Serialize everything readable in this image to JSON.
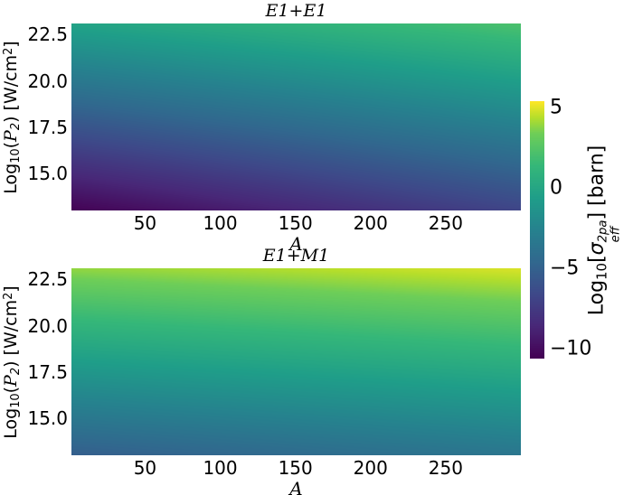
{
  "figure": {
    "background": "#ffffff",
    "text_color": "#000000"
  },
  "y_axis_label_parts": {
    "log": "Log",
    "log_sub": "10",
    "open": "(",
    "p_symbol": "P",
    "p_sub": "2",
    "close": ") [W/cm",
    "unit_sup": "2",
    "end": "]"
  },
  "colorbar": {
    "label_text": "Log10[sigma_eff^2pa] [barn]",
    "label_parts": {
      "log": "Log",
      "log_sub": "10",
      "open": "[",
      "sigma": "σ",
      "sup": "2pa",
      "sub": "eff",
      "close": "] [barn]"
    },
    "colormap": "viridis",
    "vmin": -10.6,
    "vmax": 5.4,
    "ticks": [
      {
        "label": "5",
        "value": 5
      },
      {
        "label": "0",
        "value": 0
      },
      {
        "label": "−5",
        "value": -5
      },
      {
        "label": "−10",
        "value": -10
      }
    ],
    "stops": [
      {
        "t": 0.0,
        "color": "#440154"
      },
      {
        "t": 0.125,
        "color": "#482878"
      },
      {
        "t": 0.25,
        "color": "#3e4989"
      },
      {
        "t": 0.375,
        "color": "#31688e"
      },
      {
        "t": 0.5,
        "color": "#26828e"
      },
      {
        "t": 0.625,
        "color": "#1f9e89"
      },
      {
        "t": 0.75,
        "color": "#35b779"
      },
      {
        "t": 0.875,
        "color": "#6ece58"
      },
      {
        "t": 0.9375,
        "color": "#b5de2b"
      },
      {
        "t": 1.0,
        "color": "#fde725"
      }
    ]
  },
  "chart_data": [
    {
      "type": "heatmap",
      "title": "E1+E1",
      "xlabel": "A",
      "ylabel": "Log10(P2) [W/cm^2]",
      "value_label": "Log10[sigma_eff^2pa] [barn]",
      "colormap": "viridis",
      "x_range": [
        1,
        300
      ],
      "y_range": [
        13.0,
        23.1
      ],
      "x_ticks": [
        {
          "label": "50",
          "value": 50
        },
        {
          "label": "100",
          "value": 100
        },
        {
          "label": "150",
          "value": 150
        },
        {
          "label": "200",
          "value": 200
        },
        {
          "label": "250",
          "value": 250
        }
      ],
      "y_ticks": [
        {
          "label": "22.5",
          "value": 22.5
        },
        {
          "label": "20.0",
          "value": 20.0
        },
        {
          "label": "17.5",
          "value": 17.5
        },
        {
          "label": "15.0",
          "value": 15.0
        }
      ],
      "corner_values": {
        "top_left": -0.2,
        "top_right": 2.2,
        "bottom_left": -10.5,
        "bottom_right": -6.8
      }
    },
    {
      "type": "heatmap",
      "title": "E1+M1",
      "xlabel": "A",
      "ylabel": "Log10(P2) [W/cm^2]",
      "value_label": "Log10[sigma_eff^2pa] [barn]",
      "colormap": "viridis",
      "x_range": [
        1,
        300
      ],
      "y_range": [
        13.0,
        23.1
      ],
      "x_ticks": [
        {
          "label": "50",
          "value": 50
        },
        {
          "label": "100",
          "value": 100
        },
        {
          "label": "150",
          "value": 150
        },
        {
          "label": "200",
          "value": 200
        },
        {
          "label": "250",
          "value": 250
        }
      ],
      "y_ticks": [
        {
          "label": "22.5",
          "value": 22.5
        },
        {
          "label": "20.0",
          "value": 20.0
        },
        {
          "label": "17.5",
          "value": 17.5
        },
        {
          "label": "15.0",
          "value": 15.0
        }
      ],
      "corner_values": {
        "top_left": 3.9,
        "top_right": 4.9,
        "bottom_left": -5.2,
        "bottom_right": -3.5
      }
    }
  ]
}
